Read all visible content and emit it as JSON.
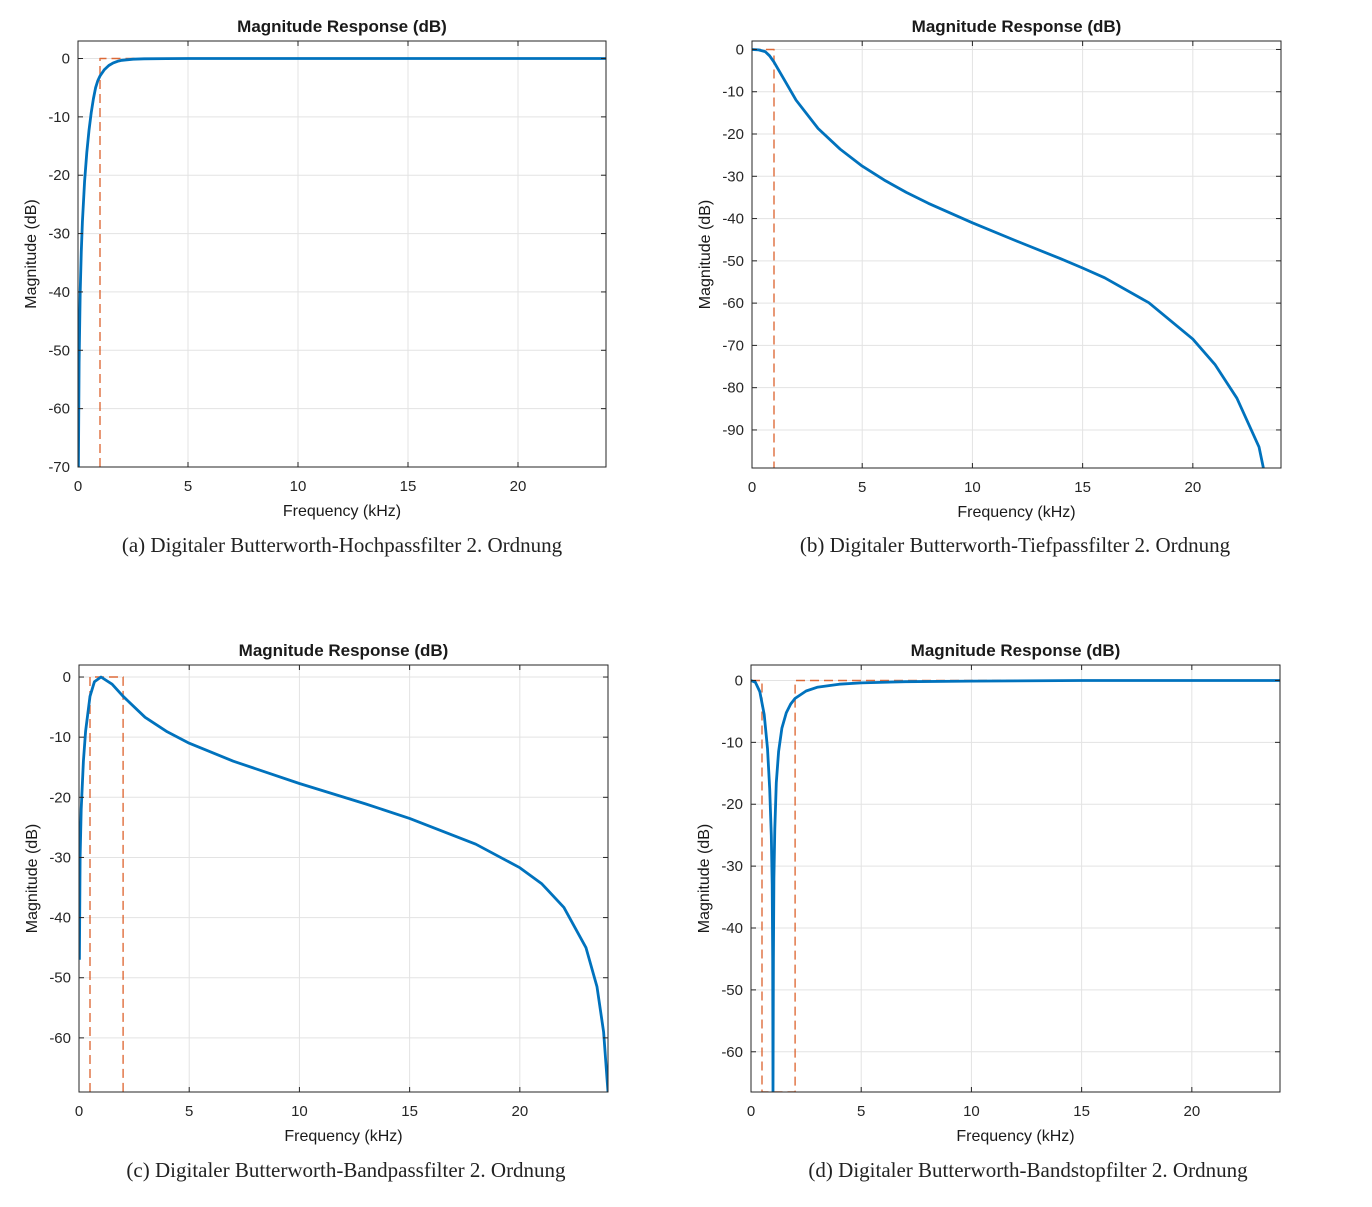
{
  "chart_data": [
    {
      "type": "line",
      "title": "Magnitude Response (dB)",
      "xlabel": "Frequency (kHz)",
      "ylabel": "Magnitude (dB)",
      "xlim": [
        0,
        24
      ],
      "ylim": [
        -70,
        3
      ],
      "xticks": [
        0,
        5,
        10,
        15,
        20
      ],
      "yticks": [
        0,
        -10,
        -20,
        -30,
        -40,
        -50,
        -60,
        -70
      ],
      "grid": true,
      "caption": "(a) Digitaler Butterworth-Hochpassfilter 2. Ordnung",
      "series": [
        {
          "kind": "response",
          "color": "#0072bd",
          "x": [
            0.02,
            0.05,
            0.1,
            0.15,
            0.2,
            0.3,
            0.4,
            0.5,
            0.6,
            0.7,
            0.8,
            0.9,
            1.0,
            1.2,
            1.4,
            1.6,
            1.8,
            2.0,
            2.5,
            3.0,
            4.0,
            5.0,
            6.0,
            10.0,
            15.0,
            20.0,
            24.0
          ],
          "y": [
            -70,
            -52.1,
            -40.0,
            -33.0,
            -28.0,
            -21.0,
            -16.1,
            -12.3,
            -9.3,
            -6.9,
            -5.0,
            -3.8,
            -3.0,
            -1.9,
            -1.2,
            -0.75,
            -0.48,
            -0.31,
            -0.12,
            -0.05,
            -0.02,
            0,
            0,
            0,
            0,
            0,
            0
          ]
        },
        {
          "kind": "ideal",
          "color": "#d95319",
          "x": [
            1.0,
            1.0,
            24.0
          ],
          "y": [
            -70,
            0,
            0
          ]
        }
      ]
    },
    {
      "type": "line",
      "title": "Magnitude Response (dB)",
      "xlabel": "Frequency (kHz)",
      "ylabel": "Magnitude (dB)",
      "xlim": [
        0,
        24
      ],
      "ylim": [
        -99,
        2
      ],
      "xticks": [
        0,
        5,
        10,
        15,
        20
      ],
      "yticks": [
        0,
        -10,
        -20,
        -30,
        -40,
        -50,
        -60,
        -70,
        -80,
        -90
      ],
      "grid": true,
      "caption": "(b) Digitaler Butterworth-Tiefpassfilter 2. Ordnung",
      "series": [
        {
          "kind": "response",
          "color": "#0072bd",
          "x": [
            0,
            0.3,
            0.6,
            0.8,
            1.0,
            1.5,
            2.0,
            3.0,
            4.0,
            5.0,
            6.0,
            7.0,
            8.0,
            10.0,
            12.0,
            14.0,
            15.0,
            16.0,
            18.0,
            20.0,
            21.0,
            22.0,
            23.0,
            23.2
          ],
          "y": [
            0,
            -0.1,
            -0.5,
            -1.5,
            -3.0,
            -7.5,
            -12.0,
            -18.7,
            -23.6,
            -27.6,
            -30.9,
            -33.8,
            -36.4,
            -41.0,
            -45.3,
            -49.5,
            -51.7,
            -54.0,
            -59.9,
            -68.5,
            -74.5,
            -82.5,
            -94.0,
            -99.0
          ]
        },
        {
          "kind": "ideal",
          "color": "#d95319",
          "x": [
            0,
            1.0,
            1.0
          ],
          "y": [
            0,
            0,
            -99
          ]
        }
      ]
    },
    {
      "type": "line",
      "title": "Magnitude Response (dB)",
      "xlabel": "Frequency (kHz)",
      "ylabel": "Magnitude (dB)",
      "xlim": [
        0,
        24
      ],
      "ylim": [
        -69,
        2
      ],
      "xticks": [
        0,
        5,
        10,
        15,
        20
      ],
      "yticks": [
        0,
        -10,
        -20,
        -30,
        -40,
        -50,
        -60
      ],
      "grid": true,
      "caption": "(c) Digitaler Butterworth-Bandpassfilter 2. Ordnung",
      "series": [
        {
          "kind": "response",
          "color": "#0072bd",
          "x": [
            0.02,
            0.05,
            0.1,
            0.2,
            0.3,
            0.5,
            0.7,
            1.0,
            1.5,
            2.0,
            3.0,
            4.0,
            5.0,
            7.0,
            10.0,
            13.0,
            15.0,
            18.0,
            20.0,
            21.0,
            22.0,
            23.0,
            23.5,
            23.8,
            24.0
          ],
          "y": [
            -47.0,
            -30.0,
            -22.0,
            -14.0,
            -9.0,
            -3.2,
            -0.8,
            0,
            -1.2,
            -3.2,
            -6.7,
            -9.1,
            -11.0,
            -14.0,
            -17.7,
            -21.1,
            -23.5,
            -27.8,
            -31.7,
            -34.4,
            -38.3,
            -45.0,
            -51.5,
            -59.0,
            -69.0
          ]
        },
        {
          "kind": "ideal",
          "color": "#d95319",
          "x": [
            0.5,
            0.5,
            2.0,
            2.0
          ],
          "y": [
            -69,
            0,
            0,
            -69
          ]
        }
      ]
    },
    {
      "type": "line",
      "title": "Magnitude Response (dB)",
      "xlabel": "Frequency (kHz)",
      "ylabel": "Magnitude (dB)",
      "xlim": [
        0,
        24
      ],
      "ylim": [
        -66.5,
        2.5
      ],
      "xticks": [
        0,
        5,
        10,
        15,
        20
      ],
      "yticks": [
        0,
        -10,
        -20,
        -30,
        -40,
        -50,
        -60
      ],
      "grid": true,
      "caption": "(d) Digitaler Butterworth-Bandstopfilter 2. Ordnung",
      "series": [
        {
          "kind": "response",
          "color": "#0072bd",
          "x": [
            0,
            0.2,
            0.4,
            0.6,
            0.75,
            0.85,
            0.92,
            0.96,
            0.985,
            1.0,
            1.015,
            1.04,
            1.08,
            1.15,
            1.25,
            1.4,
            1.6,
            1.8,
            2.0,
            2.5,
            3.0,
            4.0,
            5.0,
            7.0,
            10.0,
            15.0,
            20.0,
            24.0
          ],
          "y": [
            0,
            -0.3,
            -1.8,
            -5.5,
            -11.0,
            -17.5,
            -25.0,
            -33.0,
            -45.0,
            -66.5,
            -45.0,
            -32.0,
            -24.0,
            -16.5,
            -11.5,
            -7.7,
            -5.2,
            -3.8,
            -2.9,
            -1.7,
            -1.1,
            -0.6,
            -0.4,
            -0.2,
            -0.1,
            0,
            0,
            0
          ]
        },
        {
          "kind": "ideal",
          "color": "#d95319",
          "x": [
            0,
            0.5,
            0.5,
            2.0,
            2.0,
            24.0
          ],
          "y": [
            0,
            0,
            -66.5,
            -66.5,
            0,
            0
          ]
        }
      ]
    }
  ]
}
